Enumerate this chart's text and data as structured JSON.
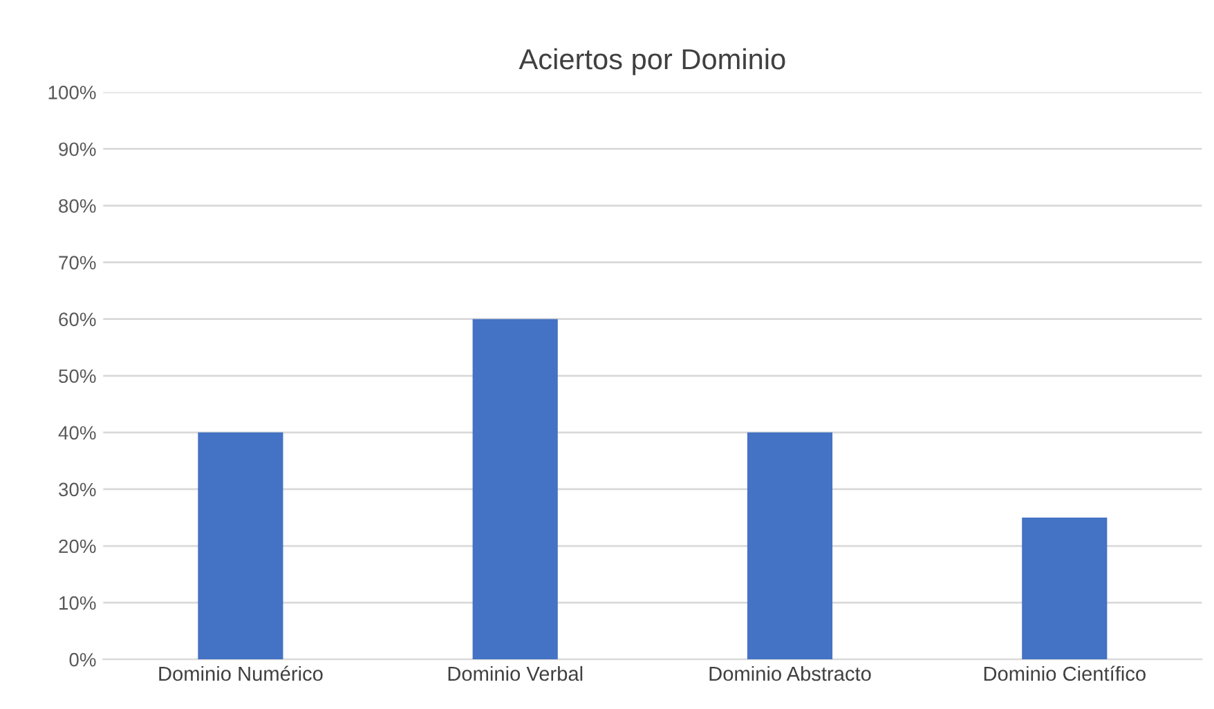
{
  "chart_data": {
    "type": "bar",
    "title": "Aciertos por Dominio",
    "categories": [
      "Dominio Numérico",
      "Dominio Verbal",
      "Dominio Abstracto",
      "Dominio Científico"
    ],
    "values": [
      40,
      60,
      40,
      25
    ],
    "color": "#4472c4",
    "ylim": [
      0,
      100
    ],
    "yticks": [
      {
        "value": 0,
        "label": "0%"
      },
      {
        "value": 10,
        "label": "10%"
      },
      {
        "value": 20,
        "label": "20%"
      },
      {
        "value": 30,
        "label": "30%"
      },
      {
        "value": 40,
        "label": "40%"
      },
      {
        "value": 50,
        "label": "50%"
      },
      {
        "value": 60,
        "label": "60%"
      },
      {
        "value": 70,
        "label": "70%"
      },
      {
        "value": 80,
        "label": "80%"
      },
      {
        "value": 90,
        "label": "90%"
      },
      {
        "value": 100,
        "label": "100%"
      }
    ],
    "grid": "y",
    "legend": false
  }
}
